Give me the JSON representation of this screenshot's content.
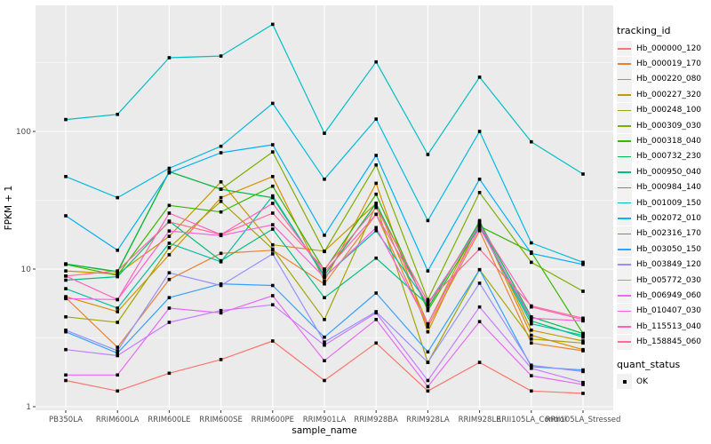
{
  "chart": {
    "y_axis_title": "FPKM + 1",
    "x_axis_title": "sample_name",
    "y_tick_labels": [
      "1",
      "10",
      "100"
    ],
    "panel_color": "#EBEBEB",
    "gridline_color": "#FFFFFF",
    "tick_text_color": "#4D4D4D",
    "marker_color": "#000000"
  },
  "legend": {
    "tracking_title": "tracking_id",
    "quant_title": "quant_status",
    "quant_items": [
      {
        "label": "OK"
      }
    ]
  },
  "chart_data": {
    "type": "line",
    "title": "",
    "xlabel": "sample_name",
    "ylabel": "FPKM + 1",
    "y_scale": "log10",
    "y_ticks": [
      1,
      10,
      100
    ],
    "ylim": [
      0.94,
      824
    ],
    "grid": "major-and-minor-horizontal, major-vertical",
    "legend_position": "right",
    "marker": "black-square",
    "quant_status": "OK",
    "categories": [
      "PB350LA",
      "RRIM600LA",
      "RRIM600LE",
      "RRIM600SE",
      "RRIM600PE",
      "RRIM901LA",
      "RRIM928BA",
      "RRIM928LA",
      "RRIM928LE",
      "RRII105LA_Control",
      "RRII105LA_Stressed"
    ],
    "series": [
      {
        "name": "Hb_000000_120",
        "color": "#F8766D",
        "values": [
          1.55,
          1.3,
          1.75,
          2.2,
          3.0,
          1.55,
          2.9,
          1.3,
          2.1,
          1.3,
          1.25
        ]
      },
      {
        "name": "Hb_000019_170",
        "color": "#EA8331",
        "values": [
          6.2,
          2.7,
          8.4,
          13,
          13.7,
          7.8,
          25,
          3.8,
          19,
          2.9,
          2.55
        ]
      },
      {
        "name": "Hb_000220_080",
        "color": "#D89000",
        "values": [
          6.3,
          4.9,
          12.7,
          33,
          47,
          8.2,
          42,
          3.5,
          22,
          3.3,
          2.6
        ]
      },
      {
        "name": "Hb_000227_320",
        "color": "#C09B00",
        "values": [
          9.7,
          9.2,
          17.3,
          43,
          15,
          13.5,
          30,
          4.0,
          22.5,
          3.6,
          3.0
        ]
      },
      {
        "name": "Hb_000248_100",
        "color": "#A3A500",
        "values": [
          4.5,
          4.1,
          14.3,
          31,
          14,
          4.3,
          29,
          2.1,
          9.9,
          3.1,
          2.9
        ]
      },
      {
        "name": "Hb_000309_030",
        "color": "#7CAE00",
        "values": [
          10.9,
          9.5,
          51,
          38,
          71,
          13.4,
          57,
          6.0,
          36,
          11.2,
          6.9
        ]
      },
      {
        "name": "Hb_000318_040",
        "color": "#39B600",
        "values": [
          10.8,
          9.0,
          29,
          26,
          40,
          9.8,
          35,
          5.0,
          20.5,
          13.3,
          3.4
        ]
      },
      {
        "name": "Hb_000732_230",
        "color": "#00BB4E",
        "values": [
          10.9,
          9.6,
          51,
          38,
          33,
          9.0,
          30,
          5.2,
          22,
          4.5,
          3.4
        ]
      },
      {
        "name": "Hb_000950_040",
        "color": "#00BF7D",
        "values": [
          8.3,
          8.8,
          22.3,
          11.5,
          19.5,
          6.2,
          12,
          5.5,
          21,
          4.2,
          3.2
        ]
      },
      {
        "name": "Hb_000984_140",
        "color": "#00C1A3",
        "values": [
          7.2,
          5.2,
          15.4,
          11.3,
          34,
          8.8,
          19,
          5.6,
          20.5,
          4.0,
          3.3
        ]
      },
      {
        "name": "Hb_001009_150",
        "color": "#00BFC4",
        "values": [
          122,
          133,
          343,
          353,
          600,
          97,
          320,
          68,
          248,
          84,
          49
        ]
      },
      {
        "name": "Hb_002072_010",
        "color": "#00BAE0",
        "values": [
          47,
          33,
          54,
          78,
          160,
          45,
          123,
          22.5,
          100,
          15.5,
          11.2
        ]
      },
      {
        "name": "Hb_002316_170",
        "color": "#00B0F6",
        "values": [
          24.4,
          13.7,
          50,
          70,
          80,
          17.6,
          67,
          9.7,
          45,
          13,
          10.8
        ]
      },
      {
        "name": "Hb_003050_150",
        "color": "#35A2FF",
        "values": [
          3.5,
          2.45,
          6.2,
          7.8,
          7.6,
          3.2,
          6.7,
          2.5,
          9.9,
          1.95,
          1.85
        ]
      },
      {
        "name": "Hb_003849_120",
        "color": "#9590FF",
        "values": [
          3.6,
          2.55,
          9.4,
          7.6,
          12.9,
          2.95,
          4.9,
          2.1,
          7.9,
          2.0,
          1.8
        ]
      },
      {
        "name": "Hb_005772_030",
        "color": "#C77CFF",
        "values": [
          2.6,
          2.35,
          4.1,
          5.0,
          5.5,
          2.8,
          4.8,
          1.55,
          5.3,
          1.9,
          1.5
        ]
      },
      {
        "name": "Hb_006949_060",
        "color": "#E76BF3",
        "values": [
          1.7,
          1.7,
          5.2,
          4.8,
          6.4,
          2.16,
          4.3,
          1.4,
          4.15,
          1.68,
          1.45
        ]
      },
      {
        "name": "Hb_010407_030",
        "color": "#FA62DB",
        "values": [
          6.1,
          6.0,
          18.9,
          17.5,
          21,
          8.7,
          20,
          4.0,
          20,
          4.4,
          4.2
        ]
      },
      {
        "name": "Hb_115513_040",
        "color": "#FF62BC",
        "values": [
          8.9,
          6.0,
          25.5,
          17.8,
          30,
          9.5,
          25,
          5.5,
          21,
          5.3,
          4.3
        ]
      },
      {
        "name": "Hb_158845_060",
        "color": "#FF6A98",
        "values": [
          8.9,
          9.7,
          22,
          17.8,
          25.5,
          10,
          28,
          5.8,
          14,
          5.4,
          4.4
        ]
      }
    ]
  }
}
